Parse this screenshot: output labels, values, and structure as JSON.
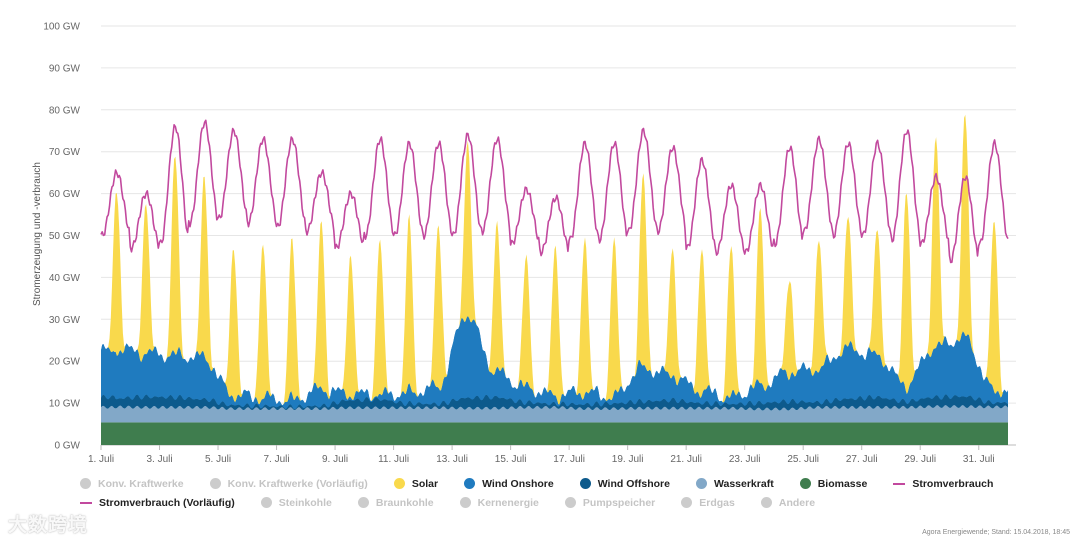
{
  "chart_data": {
    "type": "area",
    "title": "",
    "ylabel": "Stromerzeugung und -verbrauch",
    "xlabel": "",
    "ylim": [
      0,
      100
    ],
    "y_unit": "GW",
    "y_ticks": [
      "0 GW",
      "10 GW",
      "20 GW",
      "30 GW",
      "40 GW",
      "50 GW",
      "60 GW",
      "70 GW",
      "80 GW",
      "90 GW",
      "100 GW"
    ],
    "x_ticks": [
      "1. Juli",
      "3. Juli",
      "5. Juli",
      "7. Juli",
      "9. Juli",
      "11. Juli",
      "13. Juli",
      "15. Juli",
      "17. Juli",
      "19. Juli",
      "21. Juli",
      "23. Juli",
      "25. Juli",
      "27. Juli",
      "29. Juli",
      "31. Juli"
    ],
    "days": [
      1,
      2,
      3,
      4,
      5,
      6,
      7,
      8,
      9,
      10,
      11,
      12,
      13,
      14,
      15,
      16,
      17,
      18,
      19,
      20,
      21,
      22,
      23,
      24,
      25,
      26,
      27,
      28,
      29,
      30,
      31
    ],
    "grid": true,
    "stacked": true,
    "series": [
      {
        "name": "Biomasse",
        "color": "#3f7d4e",
        "daily_gw": [
          5.4,
          5.4,
          5.4,
          5.4,
          5.4,
          5.4,
          5.4,
          5.4,
          5.4,
          5.4,
          5.4,
          5.4,
          5.4,
          5.4,
          5.4,
          5.4,
          5.4,
          5.4,
          5.4,
          5.4,
          5.4,
          5.4,
          5.4,
          5.4,
          5.4,
          5.4,
          5.4,
          5.4,
          5.4,
          5.4,
          5.4
        ]
      },
      {
        "name": "Wasserkraft",
        "color": "#82a8c8",
        "daily_gw": [
          3.7,
          3.6,
          3.6,
          3.6,
          3.3,
          3.3,
          3.3,
          3.3,
          3.5,
          3.5,
          3.5,
          3.5,
          3.4,
          3.4,
          3.6,
          3.6,
          3.3,
          3.3,
          3.4,
          3.4,
          3.4,
          3.4,
          3.2,
          3.2,
          3.6,
          3.6,
          3.6,
          3.6,
          3.8,
          3.8,
          3.7
        ]
      },
      {
        "name": "Wind Offshore",
        "color": "#0d5a8c",
        "daily_gw": [
          2.0,
          2.5,
          2.4,
          1.9,
          0.8,
          0.6,
          0.4,
          0.6,
          1.8,
          2.0,
          1.0,
          0.9,
          2.4,
          2.6,
          1.2,
          0.8,
          1.0,
          1.2,
          1.6,
          1.9,
          1.2,
          1.0,
          1.4,
          1.8,
          1.2,
          2.0,
          2.4,
          1.4,
          2.2,
          2.4,
          1.0
        ]
      },
      {
        "name": "Wind Onshore",
        "color": "#1f7bbf",
        "daily_gw": [
          12.0,
          10.5,
          10.0,
          10.0,
          2.5,
          2.0,
          1.5,
          4.0,
          1.5,
          1.0,
          2.5,
          4.0,
          20.0,
          6.0,
          3.5,
          2.0,
          3.0,
          1.5,
          8.0,
          6.0,
          3.0,
          1.5,
          4.0,
          7.0,
          8.0,
          12.0,
          10.0,
          4.0,
          12.0,
          14.0,
          3.0
        ]
      },
      {
        "name": "Solar",
        "color": "#f9d94c",
        "daily_peak_gw": [
          39.0,
          36.0,
          47.5,
          43.0,
          36.0,
          37.0,
          37.5,
          40.0,
          34.0,
          37.0,
          40.5,
          39.0,
          42.0,
          35.0,
          30.5,
          36.0,
          37.5,
          37.0,
          46.0,
          30.5,
          35.0,
          35.5,
          42.0,
          23.5,
          31.5,
          31.0,
          30.0,
          48.0,
          50.5,
          53.0,
          41.0
        ]
      },
      {
        "name": "Stromverbrauch",
        "color": "#c2499e",
        "daily_peak_gw": [
          65,
          60,
          76,
          77,
          75,
          73,
          73,
          65,
          60,
          73,
          72,
          72,
          74,
          73,
          61,
          59,
          72,
          72,
          75,
          71,
          68,
          62,
          62,
          71,
          73,
          72,
          72,
          75,
          64,
          64,
          72
        ],
        "daily_min_gw": [
          50,
          47,
          48,
          53,
          54,
          53,
          52,
          51,
          47,
          50,
          50,
          50,
          50,
          51,
          48,
          46,
          49,
          49,
          51,
          51,
          47,
          46,
          46,
          48,
          51,
          50,
          50,
          49,
          48,
          44,
          48
        ]
      }
    ],
    "legend": [
      {
        "label": "Konv. Kraftwerke",
        "active": false,
        "symbol": "circle",
        "color": "#cccccc"
      },
      {
        "label": "Konv. Kraftwerke (Vorläufig)",
        "active": false,
        "symbol": "circle",
        "color": "#cccccc"
      },
      {
        "label": "Solar",
        "active": true,
        "symbol": "circle",
        "color": "#f9d94c"
      },
      {
        "label": "Wind Onshore",
        "active": true,
        "symbol": "circle",
        "color": "#1f7bbf"
      },
      {
        "label": "Wind Offshore",
        "active": true,
        "symbol": "circle",
        "color": "#0d5a8c"
      },
      {
        "label": "Wasserkraft",
        "active": true,
        "symbol": "circle",
        "color": "#82a8c8"
      },
      {
        "label": "Biomasse",
        "active": true,
        "symbol": "circle",
        "color": "#3f7d4e"
      },
      {
        "label": "Stromverbrauch",
        "active": true,
        "symbol": "line",
        "color": "#c2499e"
      },
      {
        "label": "Stromverbrauch (Vorläufig)",
        "active": true,
        "symbol": "dash",
        "color": "#c2499e"
      },
      {
        "label": "Steinkohle",
        "active": false,
        "symbol": "circle",
        "color": "#cccccc"
      },
      {
        "label": "Braunkohle",
        "active": false,
        "symbol": "circle",
        "color": "#cccccc"
      },
      {
        "label": "Kernenergie",
        "active": false,
        "symbol": "circle",
        "color": "#cccccc"
      },
      {
        "label": "Pumpspeicher",
        "active": false,
        "symbol": "circle",
        "color": "#cccccc"
      },
      {
        "label": "Erdgas",
        "active": false,
        "symbol": "circle",
        "color": "#cccccc"
      },
      {
        "label": "Andere",
        "active": false,
        "symbol": "circle",
        "color": "#cccccc"
      }
    ]
  },
  "credit": "Agora Energiewende; Stand: 15.04.2018, 18:45",
  "watermark": "大数跨境"
}
